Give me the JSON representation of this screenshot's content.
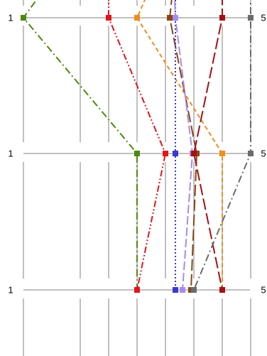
{
  "chart_data": {
    "type": "line",
    "title": "",
    "xlabel": "",
    "ylabel": "",
    "xlim": [
      0,
      8
    ],
    "x_gridlines": [
      0,
      2,
      3,
      4,
      5,
      6,
      7,
      8
    ],
    "rows": [
      {
        "left_label": "1",
        "right_label": "5"
      },
      {
        "left_label": "1",
        "right_label": "5"
      },
      {
        "left_label": "1",
        "right_label": "5"
      }
    ],
    "grid": true,
    "legend": "none",
    "series": [
      {
        "color": "#4d8a0c",
        "dash": "dashdot",
        "points": [
          {
            "x": 0.0,
            "row": 0
          },
          {
            "x": 4.0,
            "row": 1
          },
          {
            "x": 4.0,
            "row": 2
          }
        ],
        "top_entry": {
          "x": 1.0,
          "y": -30
        }
      },
      {
        "color": "#e3141c",
        "dash": "dashdotdot",
        "points": [
          {
            "x": 3.0,
            "row": 0
          },
          {
            "x": 5.0,
            "row": 1
          },
          {
            "x": 4.0,
            "row": 2
          }
        ],
        "top_entry": {
          "x": 3.0,
          "y": -30
        }
      },
      {
        "color": "#f28c1c",
        "dash": "dashed",
        "points": [
          {
            "x": 4.0,
            "row": 0
          },
          {
            "x": 7.0,
            "row": 1
          },
          {
            "x": 7.0,
            "row": 2
          }
        ],
        "top_entry": {
          "x": 4.6,
          "y": -30
        }
      },
      {
        "color": "#8b4513",
        "dash": "longdash",
        "points": [
          {
            "x": 5.15,
            "row": 0
          },
          {
            "x": 6.1,
            "row": 1
          },
          {
            "x": 5.9,
            "row": 2
          }
        ],
        "top_entry": {
          "x": 5.3,
          "y": -30
        }
      },
      {
        "color": "#3a3acc",
        "dash": "dotted",
        "points": [
          {
            "x": 5.35,
            "row": 0
          },
          {
            "x": 5.35,
            "row": 1
          },
          {
            "x": 5.35,
            "row": 2
          }
        ],
        "top_entry": {
          "x": 5.35,
          "y": -30
        }
      },
      {
        "color": "#a88af0",
        "dash": "dash",
        "points": [
          {
            "x": 5.35,
            "row": 0
          },
          {
            "x": 5.95,
            "row": 1
          },
          {
            "x": 5.6,
            "row": 2
          }
        ],
        "top_entry": {
          "x": 5.3,
          "y": -30
        }
      },
      {
        "color": "#a50f15",
        "dash": "longdash",
        "points": [
          {
            "x": 7.0,
            "row": 0
          },
          {
            "x": 6.0,
            "row": 1
          },
          {
            "x": 7.0,
            "row": 2
          }
        ],
        "top_entry": {
          "x": 7.0,
          "y": -30
        }
      },
      {
        "color": "#6b6b6b",
        "dash": "dashdot",
        "points": [
          {
            "x": 8.0,
            "row": 0
          },
          {
            "x": 8.0,
            "row": 1
          },
          {
            "x": 6.0,
            "row": 2
          }
        ],
        "top_entry": {
          "x": 8.0,
          "y": -30
        }
      }
    ]
  }
}
